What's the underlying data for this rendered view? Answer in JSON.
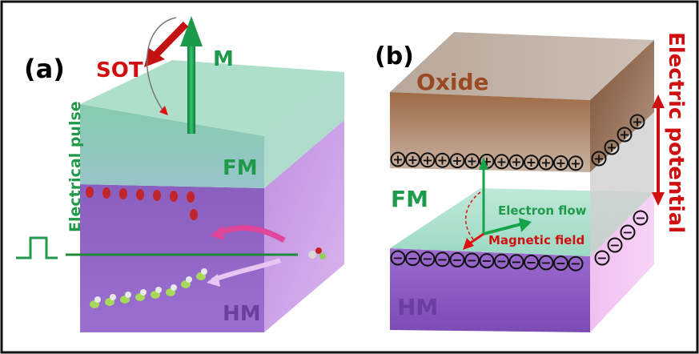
{
  "panel_a": {
    "label": "(a)",
    "sot_label": "SOT",
    "m_label": "M",
    "pulse_label": "Electrical pulse",
    "fm_label": "FM",
    "hm_label": "HM"
  },
  "panel_b": {
    "label": "(b)",
    "oxide_label": "Oxide",
    "fm_label": "FM",
    "hm_label": "HM",
    "electron_flow_label": "Electron flow",
    "magnetic_field_label": "Magnetic field",
    "electric_potential_label": "Electric potential",
    "plus_symbol": "+",
    "minus_symbol": "−"
  },
  "colors": {
    "green_text": "#1f9a4a",
    "red_text": "#d01010",
    "oxide_text": "#9a4a22",
    "hm_text": "#6b3fa0",
    "fm_layer": "#8fd3b6",
    "hm_layer": "#b98ad9",
    "oxide_layer": "#a87a58"
  }
}
